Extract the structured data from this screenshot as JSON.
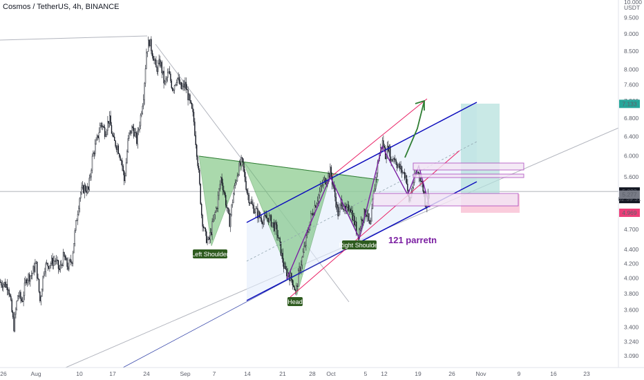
{
  "header": {
    "title": "Cosmos / TetherUS, 4h, BINANCE"
  },
  "chart_data": {
    "type": "candlestick",
    "symbol": "Cosmos / TetherUS",
    "interval": "4h",
    "exchange": "BINANCE",
    "scale": "log",
    "currency_label": "USDT",
    "y_ticks": [
      "10.000",
      "9.500",
      "9.000",
      "8.500",
      "8.000",
      "7.600",
      "7.200",
      "6.800",
      "6.400",
      "6.000",
      "5.600",
      "5.200",
      "4.700",
      "4.400",
      "4.200",
      "4.000",
      "3.800",
      "3.600",
      "3.400",
      "3.240",
      "3.090"
    ],
    "y_tick_values": [
      10.0,
      9.5,
      9.0,
      8.5,
      8.0,
      7.6,
      7.2,
      6.8,
      6.4,
      6.0,
      5.6,
      5.2,
      4.7,
      4.4,
      4.2,
      4.0,
      3.8,
      3.6,
      3.4,
      3.24,
      3.09
    ],
    "x_ticks": [
      "26",
      "Aug",
      "10",
      "17",
      "24",
      "Sep",
      "7",
      "14",
      "21",
      "28",
      "Oct",
      "5",
      "12",
      "19",
      "26",
      "Nov",
      "9",
      "16",
      "23"
    ],
    "price_path": [
      [
        0,
        3.95
      ],
      [
        12,
        3.9
      ],
      [
        20,
        3.4
      ],
      [
        26,
        3.8
      ],
      [
        32,
        3.7
      ],
      [
        38,
        4.0
      ],
      [
        46,
        4.05
      ],
      [
        52,
        4.2
      ],
      [
        58,
        3.7
      ],
      [
        64,
        4.15
      ],
      [
        72,
        4.2
      ],
      [
        80,
        4.25
      ],
      [
        86,
        4.1
      ],
      [
        92,
        4.3
      ],
      [
        98,
        4.15
      ],
      [
        104,
        4.25
      ],
      [
        110,
        4.8
      ],
      [
        116,
        5.3
      ],
      [
        122,
        5.4
      ],
      [
        128,
        5.35
      ],
      [
        134,
        6.0
      ],
      [
        140,
        6.3
      ],
      [
        146,
        6.7
      ],
      [
        152,
        6.5
      ],
      [
        158,
        6.8
      ],
      [
        164,
        6.3
      ],
      [
        170,
        6.2
      ],
      [
        176,
        5.9
      ],
      [
        180,
        5.5
      ],
      [
        186,
        6.4
      ],
      [
        192,
        6.6
      ],
      [
        198,
        6.3
      ],
      [
        204,
        6.9
      ],
      [
        208,
        7.4
      ],
      [
        212,
        8.5
      ],
      [
        216,
        8.8
      ],
      [
        220,
        8.5
      ],
      [
        226,
        8.0
      ],
      [
        232,
        8.2
      ],
      [
        238,
        7.6
      ],
      [
        244,
        7.9
      ],
      [
        250,
        7.5
      ],
      [
        256,
        7.8
      ],
      [
        262,
        7.5
      ],
      [
        268,
        7.6
      ],
      [
        274,
        7.2
      ],
      [
        280,
        6.8
      ],
      [
        286,
        5.9
      ],
      [
        292,
        4.9
      ],
      [
        297,
        4.6
      ],
      [
        302,
        4.5
      ],
      [
        308,
        4.8
      ],
      [
        314,
        5.1
      ],
      [
        320,
        5.6
      ],
      [
        326,
        5.2
      ],
      [
        332,
        4.8
      ],
      [
        338,
        5.3
      ],
      [
        344,
        5.7
      ],
      [
        350,
        5.9
      ],
      [
        354,
        5.6
      ],
      [
        358,
        5.3
      ],
      [
        364,
        5.1
      ],
      [
        370,
        5.0
      ],
      [
        376,
        4.9
      ],
      [
        382,
        4.85
      ],
      [
        388,
        4.9
      ],
      [
        394,
        4.8
      ],
      [
        400,
        4.7
      ],
      [
        406,
        4.4
      ],
      [
        412,
        4.1
      ],
      [
        418,
        4.05
      ],
      [
        424,
        3.95
      ],
      [
        428,
        3.8
      ],
      [
        432,
        4.05
      ],
      [
        438,
        4.3
      ],
      [
        444,
        4.6
      ],
      [
        450,
        4.9
      ],
      [
        456,
        5.1
      ],
      [
        462,
        5.3
      ],
      [
        468,
        5.5
      ],
      [
        474,
        5.6
      ],
      [
        478,
        5.7
      ],
      [
        484,
        5.3
      ],
      [
        490,
        4.9
      ],
      [
        494,
        5.2
      ],
      [
        500,
        4.95
      ],
      [
        506,
        5.1
      ],
      [
        512,
        4.85
      ],
      [
        518,
        4.6
      ],
      [
        524,
        4.9
      ],
      [
        530,
        5.0
      ],
      [
        536,
        4.7
      ],
      [
        540,
        5.2
      ],
      [
        546,
        5.8
      ],
      [
        550,
        6.1
      ],
      [
        554,
        6.3
      ],
      [
        558,
        6.0
      ],
      [
        562,
        6.2
      ],
      [
        566,
        5.9
      ],
      [
        570,
        6.0
      ],
      [
        576,
        5.8
      ],
      [
        582,
        5.7
      ],
      [
        588,
        5.6
      ],
      [
        592,
        5.1
      ],
      [
        598,
        5.5
      ],
      [
        604,
        5.7
      ],
      [
        608,
        5.6
      ],
      [
        612,
        5.4
      ],
      [
        616,
        5.1
      ],
      [
        620,
        5.28
      ],
      [
        622,
        5.33
      ]
    ],
    "current_price": "5.333",
    "countdown": "02:59:31",
    "price_labels": [
      {
        "text": "7.133",
        "value": 7.133,
        "color": "#26a69a"
      },
      {
        "text": "5.277",
        "value": 5.277,
        "color": "#787b86"
      },
      {
        "text": "4.969",
        "value": 4.969,
        "color": "#ec407a"
      }
    ],
    "annotations": [
      {
        "text": "Left Shoulder",
        "type": "label"
      },
      {
        "text": "Head",
        "type": "label"
      },
      {
        "text": "Right Shoulder",
        "type": "label"
      },
      {
        "text": "121 parretn",
        "type": "text"
      }
    ],
    "colors": {
      "up": "#26a69a",
      "down": "#ef5350",
      "candle": "#131722",
      "channel": "#0d0dbd",
      "pattern": "#66bb6a",
      "magenta": "#9c27b0",
      "pink": "#e91e63"
    }
  }
}
